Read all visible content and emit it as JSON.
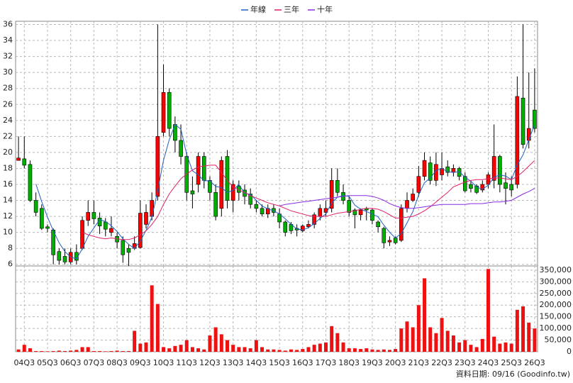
{
  "chart_data": [
    {
      "type": "candlestick",
      "categories": [
        null,
        "04Q3",
        null,
        null,
        null,
        "05Q3",
        null,
        null,
        null,
        "06Q3",
        null,
        null,
        null,
        "07Q3",
        null,
        null,
        null,
        "08Q3",
        null,
        null,
        null,
        "09Q3",
        null,
        null,
        null,
        "10Q3",
        null,
        null,
        null,
        "11Q3",
        null,
        null,
        null,
        "12Q3",
        null,
        null,
        null,
        "13Q3",
        null,
        null,
        null,
        "14Q3",
        null,
        null,
        null,
        "15Q3",
        null,
        null,
        null,
        "16Q3",
        null,
        null,
        null,
        "17Q3",
        null,
        null,
        null,
        "18Q3",
        null,
        null,
        null,
        "19Q3",
        null,
        null,
        null,
        "20Q3",
        null,
        null,
        null,
        "21Q3",
        null,
        null,
        null,
        "22Q3",
        null,
        null,
        null,
        "23Q3",
        null,
        null,
        null,
        "24Q3",
        null,
        null,
        null,
        "25Q3",
        null,
        null,
        null,
        "26Q3"
      ],
      "open": [
        19,
        19.2,
        18.5,
        14,
        13,
        10.7,
        10.3,
        7.6,
        7,
        6.3,
        7.5,
        8,
        11.5,
        12.5,
        11.8,
        11.3,
        10,
        9.5,
        9,
        8,
        8,
        8.1,
        11,
        12,
        14.5,
        22.5,
        27.5,
        23.5,
        21.5,
        19.5,
        15.2,
        16,
        19.5,
        16.5,
        15,
        13,
        19.5,
        14,
        15.8,
        15.3,
        14.8,
        13.5,
        13,
        12.3,
        13,
        12.3,
        11.3,
        11,
        10.5,
        10.2,
        10.7,
        11,
        12,
        12.5,
        13,
        16.5,
        15,
        14,
        12.8,
        12.2,
        13,
        12.8,
        11.3,
        10.5,
        8.8,
        9.3,
        9,
        13,
        14,
        15,
        17,
        18.7,
        16.5,
        17.2,
        18.2,
        17.5,
        18,
        17,
        16,
        15.8,
        15.3,
        16,
        16.5,
        19.5,
        16.2,
        16,
        16,
        26.8,
        21.5,
        25.3
      ],
      "high": [
        22,
        22,
        19,
        15,
        13.5,
        11,
        10.5,
        8,
        8,
        8,
        8.5,
        12,
        14,
        14,
        12.5,
        11.8,
        12,
        10,
        9.5,
        8.5,
        9.5,
        14,
        13.5,
        15,
        36,
        31,
        28,
        24.5,
        23.5,
        20,
        17,
        20,
        20,
        17,
        16,
        19.5,
        20.3,
        16.5,
        16.5,
        16,
        15.5,
        14,
        13.5,
        13.5,
        13.5,
        13,
        11.5,
        11.3,
        11,
        11,
        11.5,
        12.5,
        13.5,
        14,
        18,
        18,
        16,
        14.5,
        13,
        13,
        13.2,
        13,
        11.5,
        10.7,
        9.5,
        9.5,
        13.5,
        15,
        15.5,
        18.3,
        20,
        19.5,
        20,
        20,
        19,
        18.5,
        18.2,
        17.5,
        16.5,
        16,
        16.5,
        17.5,
        23.5,
        19.7,
        17.5,
        17,
        29.5,
        36,
        30,
        30.5
      ],
      "low": [
        19,
        18,
        13.8,
        12,
        10.3,
        10,
        6,
        6,
        6,
        6,
        6,
        7.8,
        10.8,
        11,
        9.8,
        9.5,
        9.5,
        8,
        6.2,
        5.8,
        7.8,
        8,
        10.5,
        11.5,
        14,
        22,
        22,
        20,
        18.5,
        14,
        13,
        15,
        15.5,
        14,
        11.5,
        12,
        13,
        12.5,
        14,
        13.5,
        13,
        12.5,
        12,
        11.8,
        12,
        10.5,
        9.5,
        9.8,
        9.5,
        10,
        10.5,
        10.5,
        11.5,
        12,
        12.5,
        14.5,
        13.5,
        12,
        10.5,
        11.5,
        11.5,
        11,
        10,
        8,
        8.3,
        8.5,
        8.8,
        12.5,
        13.8,
        14.5,
        16.5,
        16,
        15.8,
        16.5,
        17,
        17,
        16.5,
        15,
        15,
        14.8,
        15,
        15.5,
        15.5,
        15,
        13.5,
        14.5,
        15.5,
        20.5,
        20.5,
        22.5
      ],
      "close": [
        19.3,
        18.4,
        14,
        12.5,
        10.5,
        10.5,
        7.2,
        6.5,
        6.3,
        7.5,
        6.5,
        11.5,
        12.5,
        11.7,
        10.8,
        10.4,
        10.5,
        8.8,
        7.2,
        7.5,
        8.6,
        12.4,
        12.5,
        14,
        22,
        27.5,
        23,
        21.5,
        19.5,
        15,
        14.8,
        19.5,
        16.5,
        15,
        12,
        19,
        14,
        16,
        15,
        14.5,
        13.5,
        13,
        12.3,
        13,
        12.5,
        11.3,
        10,
        10.2,
        10.3,
        10.8,
        11,
        12.2,
        13,
        13,
        16.5,
        15,
        14,
        12.5,
        12.2,
        12.8,
        12.8,
        11.5,
        10.7,
        8.7,
        9,
        8.7,
        13,
        14,
        14.8,
        17,
        19,
        16.5,
        18.5,
        18,
        17.5,
        18,
        17,
        15.2,
        15.5,
        15,
        16,
        17.2,
        19.5,
        16,
        15.5,
        15.3,
        27,
        21,
        23,
        23
      ],
      "up_color": "#ff0000",
      "down_color": "#00b000",
      "series": [
        {
          "name": "年線",
          "color": "#2060c0",
          "values": [
            null,
            null,
            null,
            16.05,
            13.85,
            11.9,
            10.2,
            8.7,
            7.6,
            6.9,
            6.7,
            7.95,
            9.5,
            10.55,
            11.6,
            11.35,
            10.85,
            10.1,
            9.2,
            8.5,
            8.0,
            8.9,
            10.25,
            11.9,
            15.2,
            19.0,
            21.6,
            23.5,
            22.9,
            19.75,
            17.7,
            17.2,
            16.45,
            16.45,
            15.75,
            15.6,
            15.0,
            15.25,
            16.0,
            14.9,
            14.75,
            14.0,
            13.3,
            12.95,
            12.7,
            12.3,
            11.7,
            11.0,
            10.45,
            10.3,
            10.6,
            11.1,
            11.75,
            12.3,
            13.7,
            14.4,
            14.6,
            14.5,
            13.4,
            12.9,
            12.6,
            12.3,
            11.95,
            10.9,
            10.0,
            9.3,
            9.85,
            11.2,
            12.6,
            14.7,
            16.2,
            16.8,
            17.75,
            18.0,
            17.6,
            17.5,
            17.6,
            16.9,
            16.4,
            15.7,
            15.4,
            15.9,
            16.9,
            17.2,
            17.05,
            16.6,
            18.45,
            19.7,
            21.6,
            23.5
          ]
        },
        {
          "name": "三年",
          "color": "#e0206a",
          "values": [
            null,
            null,
            null,
            null,
            null,
            null,
            null,
            null,
            null,
            null,
            null,
            10,
            9.7,
            9.5,
            9.3,
            9.2,
            9.3,
            9.2,
            9.1,
            9.1,
            9.3,
            9.7,
            10.2,
            11.0,
            12.0,
            13.5,
            14.8,
            15.8,
            16.7,
            17.3,
            17.8,
            18.2,
            18.3,
            18.4,
            18.4,
            17.5,
            16.5,
            15.7,
            15.3,
            15.0,
            14.6,
            14.3,
            14.0,
            13.7,
            13.5,
            13.3,
            13.0,
            12.7,
            12.5,
            12.3,
            12.1,
            12.0,
            12.0,
            12.0,
            12.2,
            12.4,
            12.5,
            12.6,
            12.7,
            12.9,
            13.0,
            13.0,
            12.9,
            12.6,
            12.2,
            11.8,
            11.8,
            11.9,
            12.0,
            12.3,
            12.7,
            13.2,
            13.8,
            14.4,
            15.0,
            15.7,
            16.0,
            16.3,
            16.5,
            16.6,
            16.6,
            16.7,
            16.8,
            16.8,
            16.7,
            16.6,
            17.0,
            17.6,
            18.3,
            19.0
          ]
        },
        {
          "name": "十年",
          "color": "#8a2be2",
          "values": [
            null,
            null,
            null,
            null,
            null,
            null,
            null,
            null,
            null,
            null,
            null,
            null,
            null,
            null,
            null,
            null,
            null,
            null,
            null,
            null,
            null,
            null,
            null,
            null,
            null,
            null,
            null,
            null,
            null,
            null,
            null,
            null,
            null,
            null,
            null,
            null,
            null,
            null,
            null,
            null,
            null,
            null,
            null,
            null,
            null,
            13.3,
            13.5,
            13.6,
            13.7,
            13.8,
            13.9,
            14.0,
            14.1,
            14.2,
            14.3,
            14.4,
            14.5,
            14.6,
            14.6,
            14.6,
            14.6,
            14.5,
            14.3,
            14.0,
            13.6,
            13.3,
            13.1,
            13.0,
            13.0,
            13.1,
            13.2,
            13.3,
            13.4,
            13.5,
            13.5,
            13.5,
            13.5,
            13.5,
            13.6,
            13.6,
            13.6,
            13.7,
            13.8,
            13.8,
            13.9,
            14.0,
            14.4,
            14.8,
            15.1,
            15.5
          ]
        }
      ],
      "ylim": [
        5.8,
        36.4
      ],
      "yticks": [
        6,
        8,
        10,
        12,
        14,
        16,
        18,
        20,
        22,
        24,
        26,
        28,
        30,
        32,
        34,
        36
      ],
      "grid": true
    },
    {
      "type": "bar",
      "values": [
        10000,
        30000,
        15000,
        3000,
        3000,
        2000,
        3000,
        5000,
        3000,
        5000,
        8000,
        20000,
        20000,
        3000,
        3000,
        2000,
        3000,
        5000,
        3000,
        3000,
        90000,
        35000,
        40000,
        285000,
        205000,
        20000,
        15000,
        25000,
        30000,
        50000,
        20000,
        15000,
        10000,
        70000,
        105000,
        75000,
        50000,
        30000,
        20000,
        20000,
        15000,
        50000,
        20000,
        10000,
        10000,
        8000,
        5000,
        10000,
        8000,
        12000,
        20000,
        30000,
        35000,
        40000,
        110000,
        80000,
        40000,
        15000,
        15000,
        12000,
        15000,
        10000,
        8000,
        10000,
        8000,
        12000,
        100000,
        130000,
        105000,
        200000,
        315000,
        105000,
        80000,
        145000,
        90000,
        70000,
        40000,
        50000,
        30000,
        20000,
        55000,
        355000,
        65000,
        35000,
        40000,
        35000,
        180000,
        195000,
        125000,
        100000
      ],
      "color": "#ee1111",
      "ylim": [
        0,
        368000
      ],
      "yticks": [
        0,
        {
          "value": 50000,
          "label": "50,000"
        },
        {
          "value": 100000,
          "label": "100,000"
        },
        {
          "value": 150000,
          "label": "150,000"
        },
        {
          "value": 200000,
          "label": "200,000"
        },
        {
          "value": 250000,
          "label": "250,000"
        },
        {
          "value": 300000,
          "label": "300,000"
        },
        {
          "value": 350000,
          "label": "350,000"
        }
      ],
      "grid": true,
      "caption": "資料日期: 09/16 (Goodinfo.tw)"
    }
  ]
}
